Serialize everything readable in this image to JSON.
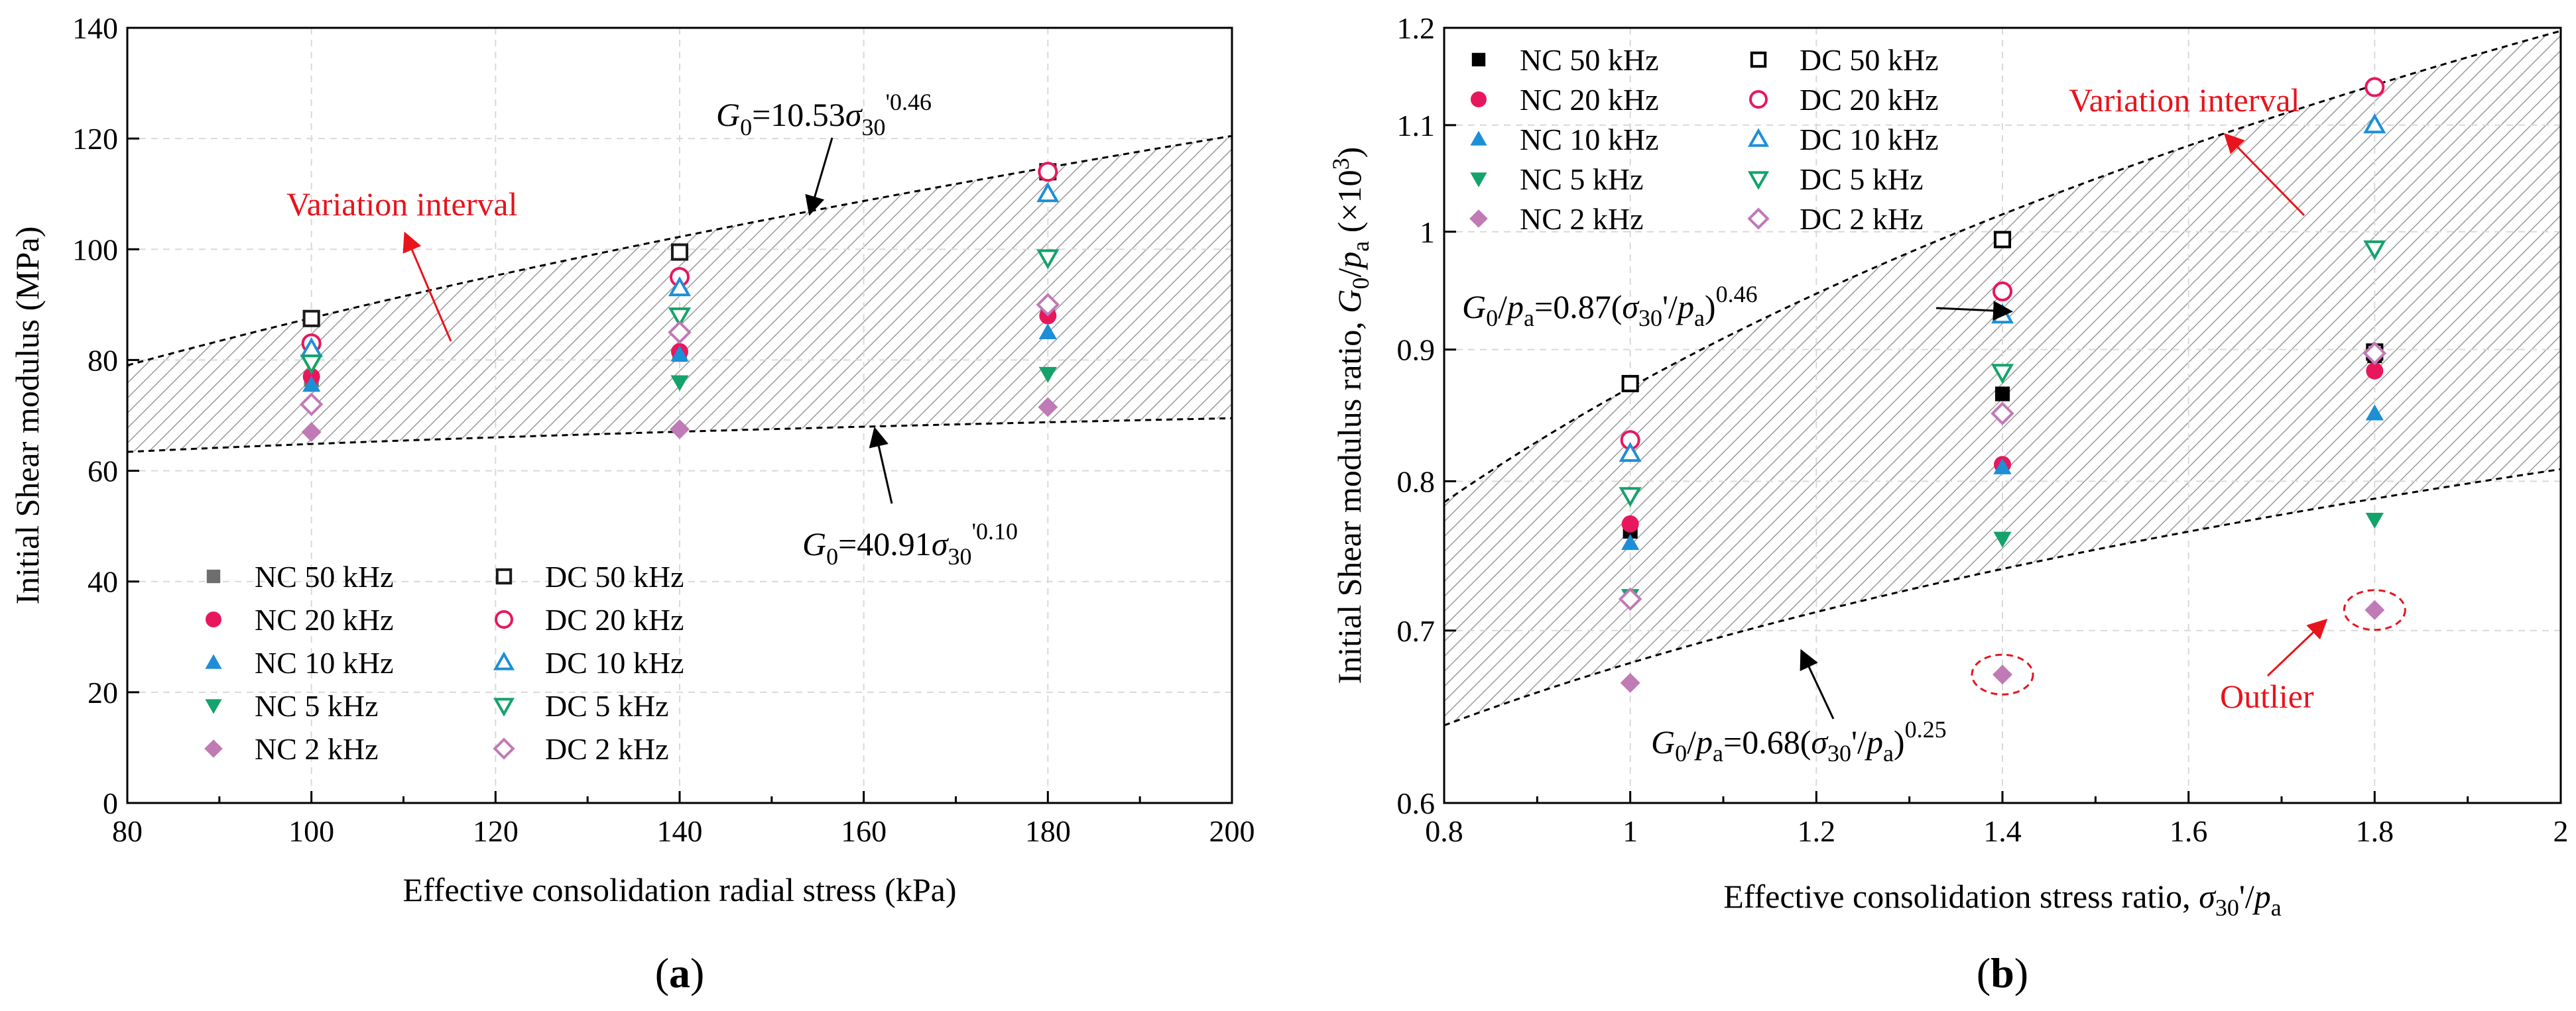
{
  "chart_data": [
    {
      "type": "scatter",
      "panel_label": "(a)",
      "panel_letter": "a",
      "xlabel": "Effective consolidation radial stress (kPa)",
      "ylabel": "Initial Shear modulus (MPa)",
      "xlim": [
        80,
        200
      ],
      "ylim": [
        0,
        140
      ],
      "xticks": [
        80,
        100,
        120,
        140,
        160,
        180,
        200
      ],
      "yticks": [
        0,
        20,
        40,
        60,
        80,
        100,
        120,
        140
      ],
      "grid": true,
      "legend_position": "bottom-left",
      "series": [
        {
          "name": "NC 50 kHz",
          "marker": "square",
          "filled": true,
          "color": "#6e6e6e",
          "points": [
            [
              100,
              76.5
            ],
            [
              140,
              81
            ],
            [
              180,
              89
            ]
          ]
        },
        {
          "name": "NC 20 kHz",
          "marker": "circle",
          "filled": true,
          "color": "#e8175d",
          "points": [
            [
              100,
              77
            ],
            [
              140,
              81.5
            ],
            [
              180,
              88
            ]
          ]
        },
        {
          "name": "NC 10 kHz",
          "marker": "triangle-up",
          "filled": true,
          "color": "#1c8fd6",
          "points": [
            [
              100,
              75.5
            ],
            [
              140,
              81
            ],
            [
              180,
              85
            ]
          ]
        },
        {
          "name": "NC 5 kHz",
          "marker": "triangle-down",
          "filled": true,
          "color": "#14a36a",
          "points": [
            [
              100,
              79
            ],
            [
              140,
              76
            ],
            [
              180,
              77.5
            ]
          ]
        },
        {
          "name": "NC 2 kHz",
          "marker": "diamond",
          "filled": true,
          "color": "#c07ab5",
          "points": [
            [
              100,
              67
            ],
            [
              140,
              67.5
            ],
            [
              180,
              71.5
            ]
          ]
        },
        {
          "name": "DC 50 kHz",
          "marker": "square",
          "filled": false,
          "color": "#1a1a1a",
          "points": [
            [
              100,
              87.5
            ],
            [
              140,
              99.5
            ],
            [
              180,
              114
            ]
          ]
        },
        {
          "name": "DC 20 kHz",
          "marker": "circle",
          "filled": false,
          "color": "#e8175d",
          "points": [
            [
              100,
              83
            ],
            [
              140,
              95
            ],
            [
              180,
              114
            ]
          ]
        },
        {
          "name": "DC 10 kHz",
          "marker": "triangle-up",
          "filled": false,
          "color": "#1c8fd6",
          "points": [
            [
              100,
              82
            ],
            [
              140,
              93
            ],
            [
              180,
              110
            ]
          ]
        },
        {
          "name": "DC 5 kHz",
          "marker": "triangle-down",
          "filled": false,
          "color": "#14a36a",
          "points": [
            [
              100,
              79.5
            ],
            [
              140,
              88
            ],
            [
              180,
              98.5
            ]
          ]
        },
        {
          "name": "DC 2 kHz",
          "marker": "diamond",
          "filled": false,
          "color": "#c07ab5",
          "points": [
            [
              100,
              72
            ],
            [
              140,
              85
            ],
            [
              180,
              90
            ]
          ]
        }
      ],
      "fit_lines": [
        {
          "role": "upper",
          "coef": 10.53,
          "exp": 0.46,
          "label_base": "G",
          "label_sub": "0",
          "label_coef": "=10.53",
          "label_sigma": "σ",
          "label_sigma_sub": "30",
          "label_exp": "'0.46"
        },
        {
          "role": "lower",
          "coef": 40.91,
          "exp": 0.1,
          "label_base": "G",
          "label_sub": "0",
          "label_coef": "=40.91",
          "label_sigma": "σ",
          "label_sigma_sub": "30",
          "label_exp": "'0.10"
        }
      ],
      "annotations": {
        "variation": "Variation interval"
      }
    },
    {
      "type": "scatter",
      "panel_label": "(b)",
      "panel_letter": "b",
      "xlabel_main": "Effective consolidation stress ratio, ",
      "xlabel_sym": "σ",
      "xlabel_sub1": "30",
      "xlabel_prime": "'/",
      "xlabel_sym2": "p",
      "xlabel_sub2": "a",
      "ylabel_main": "Initial Shear modulus ratio, ",
      "ylabel_sym": "G",
      "ylabel_sub": "0",
      "ylabel_slash": "/",
      "ylabel_p": "p",
      "ylabel_a": "a",
      "ylabel_scale": " (×10",
      "ylabel_scale_exp": "3",
      "ylabel_close": ")",
      "xlim": [
        0.8,
        2.0
      ],
      "ylim": [
        0.6,
        1.2
      ],
      "y_scale": "log",
      "xticks": [
        0.8,
        1.0,
        1.2,
        1.4,
        1.6,
        1.8,
        2.0
      ],
      "xtick_labels": [
        "0.8",
        "1",
        "1.2",
        "1.4",
        "1.6",
        "1.8",
        "2"
      ],
      "yticks": [
        0.6,
        0.7,
        0.8,
        0.9,
        1.0,
        1.1,
        1.2
      ],
      "ytick_labels": [
        "0.6",
        "0.7",
        "0.8",
        "0.9",
        "1",
        "1.1",
        "1.2"
      ],
      "grid": true,
      "legend_position": "top-left",
      "series": [
        {
          "name": "NC 50 kHz",
          "marker": "square",
          "filled": true,
          "color": "#000000",
          "points": [
            [
              1.0,
              0.765
            ],
            [
              1.4,
              0.865
            ],
            [
              1.8,
              0.895
            ]
          ]
        },
        {
          "name": "NC 20 kHz",
          "marker": "circle",
          "filled": true,
          "color": "#e8175d",
          "points": [
            [
              1.0,
              0.77
            ],
            [
              1.4,
              0.812
            ],
            [
              1.8,
              0.883
            ]
          ]
        },
        {
          "name": "NC 10 kHz",
          "marker": "triangle-up",
          "filled": true,
          "color": "#1c8fd6",
          "points": [
            [
              1.0,
              0.757
            ],
            [
              1.4,
              0.81
            ],
            [
              1.8,
              0.85
            ]
          ]
        },
        {
          "name": "NC 5 kHz",
          "marker": "triangle-down",
          "filled": true,
          "color": "#14a36a",
          "points": [
            [
              1.0,
              0.722
            ],
            [
              1.4,
              0.76
            ],
            [
              1.8,
              0.773
            ]
          ]
        },
        {
          "name": "NC 2 kHz",
          "marker": "diamond",
          "filled": true,
          "color": "#c07ab5",
          "points": [
            [
              1.0,
              0.668
            ],
            [
              1.4,
              0.673
            ],
            [
              1.8,
              0.713
            ]
          ]
        },
        {
          "name": "DC 50 kHz",
          "marker": "square",
          "filled": false,
          "color": "#000000",
          "points": [
            [
              1.0,
              0.873
            ],
            [
              1.4,
              0.993
            ],
            [
              1.8,
              0.898
            ]
          ]
        },
        {
          "name": "DC 20 kHz",
          "marker": "circle",
          "filled": false,
          "color": "#e8175d",
          "points": [
            [
              1.0,
              0.83
            ],
            [
              1.4,
              0.948
            ],
            [
              1.8,
              1.138
            ]
          ]
        },
        {
          "name": "DC 10 kHz",
          "marker": "triangle-up",
          "filled": false,
          "color": "#1c8fd6",
          "points": [
            [
              1.0,
              0.82
            ],
            [
              1.4,
              0.928
            ],
            [
              1.8,
              1.1
            ]
          ]
        },
        {
          "name": "DC 5 kHz",
          "marker": "triangle-down",
          "filled": false,
          "color": "#14a36a",
          "points": [
            [
              1.0,
              0.79
            ],
            [
              1.4,
              0.882
            ],
            [
              1.8,
              0.985
            ]
          ]
        },
        {
          "name": "DC 2 kHz",
          "marker": "diamond",
          "filled": false,
          "color": "#c07ab5",
          "points": [
            [
              1.0,
              0.72
            ],
            [
              1.4,
              0.85
            ],
            [
              1.8,
              0.897
            ]
          ]
        }
      ],
      "fit_lines": [
        {
          "role": "upper",
          "coef": 0.87,
          "exp": 0.46,
          "label_base": "G",
          "label_sub": "0",
          "label_mid": "/",
          "label_p": "p",
          "label_a": "a",
          "label_coef": "=0.87(",
          "label_sigma": "σ",
          "label_sigma_sub": "30",
          "label_prime": "'/",
          "label_p2": "p",
          "label_a2": "a",
          "label_close": ")",
          "label_exp": "0.46"
        },
        {
          "role": "lower",
          "coef": 0.68,
          "exp": 0.25,
          "label_base": "G",
          "label_sub": "0",
          "label_mid": "/",
          "label_p": "p",
          "label_a": "a",
          "label_coef": "=0.68(",
          "label_sigma": "σ",
          "label_sigma_sub": "30",
          "label_prime": "'/",
          "label_p2": "p",
          "label_a2": "a",
          "label_close": ")",
          "label_exp": "0.25"
        }
      ],
      "annotations": {
        "variation": "Variation interval",
        "outlier": "Outlier",
        "outlier_points": [
          [
            1.4,
            0.673
          ],
          [
            1.8,
            0.713
          ]
        ]
      }
    }
  ],
  "colors": {
    "accent_red": "#e8141c",
    "grid": "#d9d9d9",
    "hatch": "#9a9a9a"
  }
}
